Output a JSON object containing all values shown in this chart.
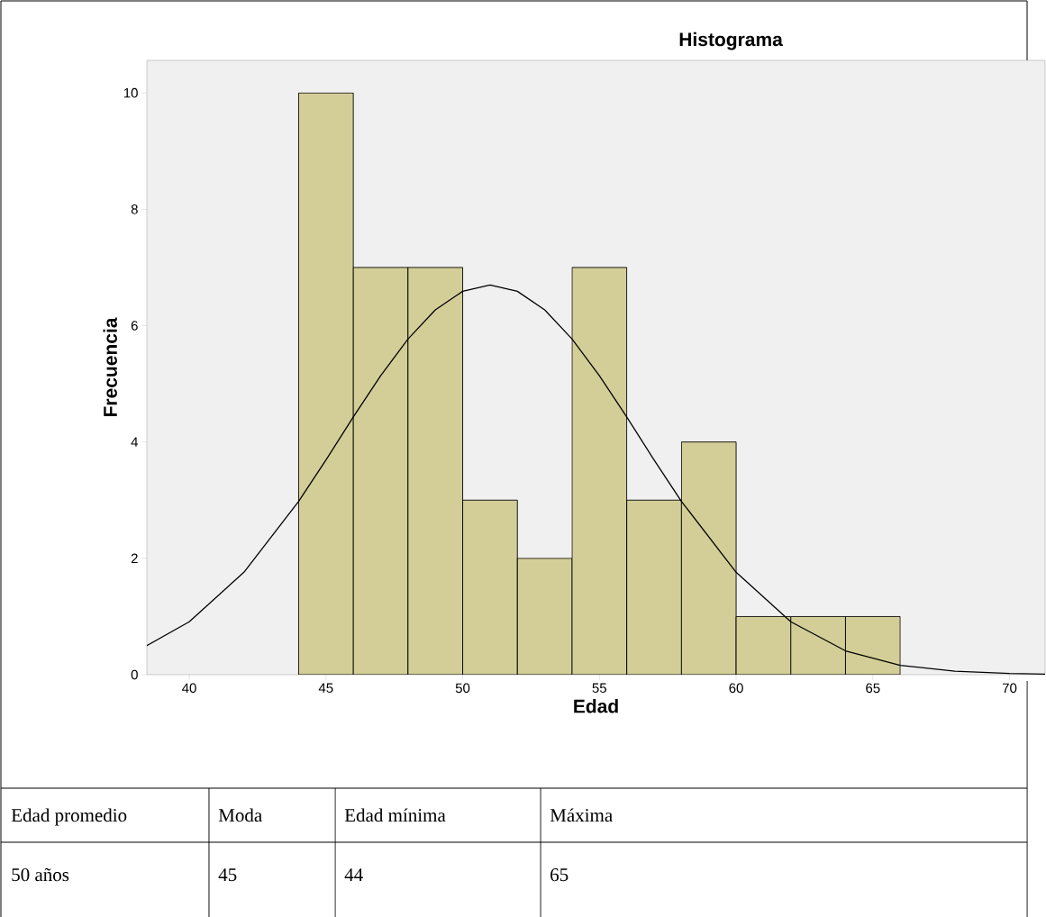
{
  "chart_data": {
    "type": "histogram",
    "title": "Histograma",
    "xlabel": "Edad",
    "ylabel": "Frecuencia",
    "xlim": [
      38.45,
      71.3
    ],
    "ylim": [
      0,
      10.56
    ],
    "xticks": [
      40,
      45,
      50,
      55,
      60,
      65,
      70
    ],
    "yticks": [
      0,
      2,
      4,
      6,
      8,
      10
    ],
    "grid": false,
    "series": [
      {
        "color": "#d3ce97",
        "bins": [
          44,
          46,
          48,
          50,
          52,
          54,
          56,
          58,
          60,
          62,
          64,
          66
        ],
        "values": [
          10,
          7,
          7,
          3,
          2,
          7,
          3,
          4,
          1,
          1,
          1
        ]
      },
      {
        "type": "line",
        "color": "#000000",
        "x": [
          38.45,
          40,
          42,
          44,
          45,
          46,
          47,
          48,
          49,
          50,
          51,
          52,
          53,
          54,
          55,
          56,
          57,
          58,
          60,
          62,
          64,
          66,
          68,
          70,
          71.3
        ],
        "values": [
          0.5,
          0.91,
          1.76,
          2.98,
          3.69,
          4.43,
          5.14,
          5.77,
          6.27,
          6.59,
          6.7,
          6.59,
          6.27,
          5.77,
          5.14,
          4.43,
          3.69,
          2.98,
          1.76,
          0.91,
          0.41,
          0.16,
          0.06,
          0.02,
          0.01
        ]
      }
    ],
    "annotations": [
      "Edad  promedio",
      "Moda",
      "Edad mínima",
      "Máxima",
      "50 años",
      "45",
      "44",
      "65"
    ]
  }
}
